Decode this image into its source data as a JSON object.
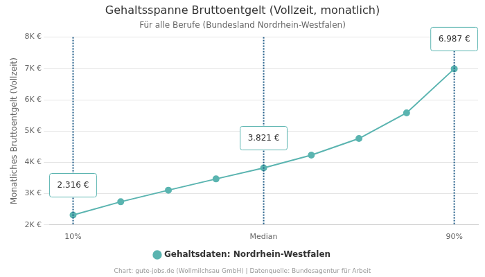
{
  "chart_data": {
    "type": "line",
    "title": "Gehaltsspanne Bruttoentgelt (Vollzeit, monatlich)",
    "subtitle": "Für alle Berufe (Bundesland Nordrhein-Westfalen)",
    "y_label": "Monatliches Bruttoentgelt (Vollzeit)",
    "source": "Chart: gute-jobs.de (Wollmilchsau GmbH) | Datenquelle: Bundesagentur für Arbeit",
    "categories": [
      "10%",
      null,
      null,
      null,
      "Median",
      null,
      null,
      null,
      "90%"
    ],
    "series": [
      {
        "name": "Gehaltsdaten: Nordrhein-Westfalen",
        "color": "#5ab4b0",
        "marker": "circle",
        "values": [
          2316,
          2740,
          3110,
          3470,
          3821,
          4230,
          4760,
          5580,
          6987
        ],
        "value_labels": [
          "2.316 €",
          null,
          null,
          null,
          "3.821 €",
          null,
          null,
          null,
          "6.987 €"
        ]
      }
    ],
    "data_labels": true,
    "ylim": [
      2000,
      8000
    ],
    "yticks": [
      {
        "value": 2000,
        "label": "2K €"
      },
      {
        "value": 3000,
        "label": "3K €"
      },
      {
        "value": 4000,
        "label": "4K €"
      },
      {
        "value": 5000,
        "label": "5K €"
      },
      {
        "value": 6000,
        "label": "6K €"
      },
      {
        "value": 7000,
        "label": "7K €"
      },
      {
        "value": 8000,
        "label": "8K €"
      }
    ],
    "grid": true,
    "legend": "bottom"
  }
}
